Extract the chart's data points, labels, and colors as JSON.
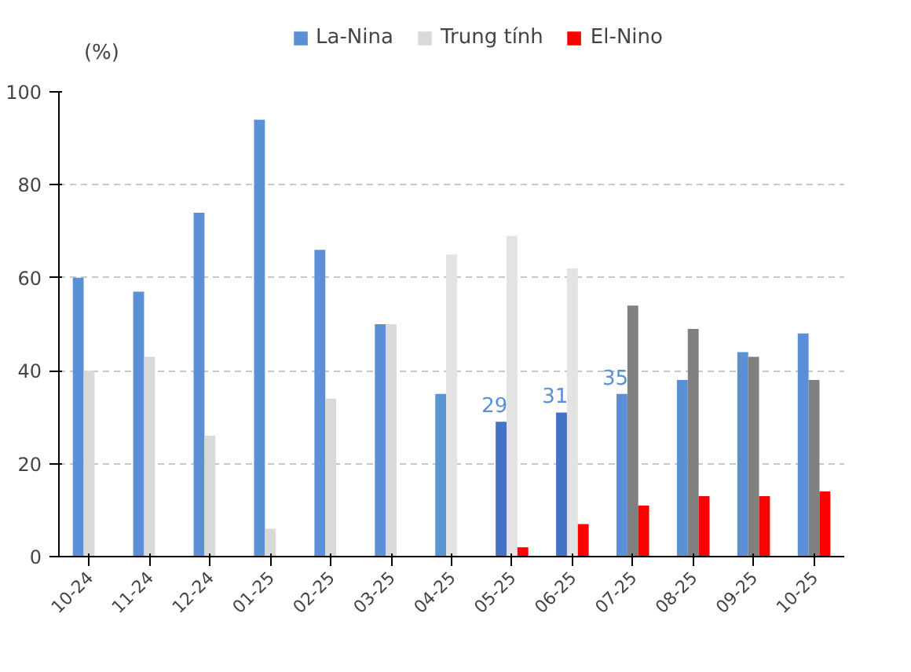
{
  "chart_data": {
    "type": "bar",
    "ylabel": "(%)",
    "categories": [
      "10-24",
      "11-24",
      "12-24",
      "01-25",
      "02-25",
      "03-25",
      "04-25",
      "05-25",
      "06-25",
      "07-25",
      "08-25",
      "09-25",
      "10-25"
    ],
    "series": [
      {
        "name": "La-Nina",
        "color": "#5b8fd6",
        "colors": [
          "#5b8fd6",
          "#5b8fd6",
          "#5b8fd6",
          "#5b8fd6",
          "#5b8fd6",
          "#5b8fd6",
          "#5b95d0",
          "#4472c4",
          "#4472c4",
          "#5b8fd6",
          "#5b8fd6",
          "#5b8fd6",
          "#5b8fd6"
        ],
        "values": [
          60,
          57,
          74,
          94,
          66,
          50,
          35,
          29,
          31,
          35,
          38,
          44,
          48
        ],
        "value_labels": [
          null,
          null,
          null,
          null,
          null,
          null,
          null,
          "29",
          "31",
          "35",
          null,
          null,
          null
        ]
      },
      {
        "name": "Trung tính",
        "color": "#d9d9d9",
        "colors": [
          "#d9d9d9",
          "#d9d9d9",
          "#d9d9d9",
          "#d9d9d9",
          "#d9d9d9",
          "#d9d9d9",
          "#e3e3e3",
          "#e3e3e3",
          "#e3e3e3",
          "#808080",
          "#808080",
          "#808080",
          "#808080"
        ],
        "values": [
          40,
          43,
          26,
          6,
          34,
          50,
          65,
          69,
          62,
          54,
          49,
          43,
          38
        ]
      },
      {
        "name": "El-Nino",
        "color": "#ff0000",
        "values": [
          0,
          0,
          0,
          0,
          0,
          0,
          0,
          2,
          7,
          11,
          13,
          13,
          14
        ]
      }
    ],
    "ylim": [
      0,
      100
    ],
    "yticks": [
      0,
      20,
      40,
      60,
      80,
      100
    ],
    "grid": "y",
    "legend": "top"
  }
}
